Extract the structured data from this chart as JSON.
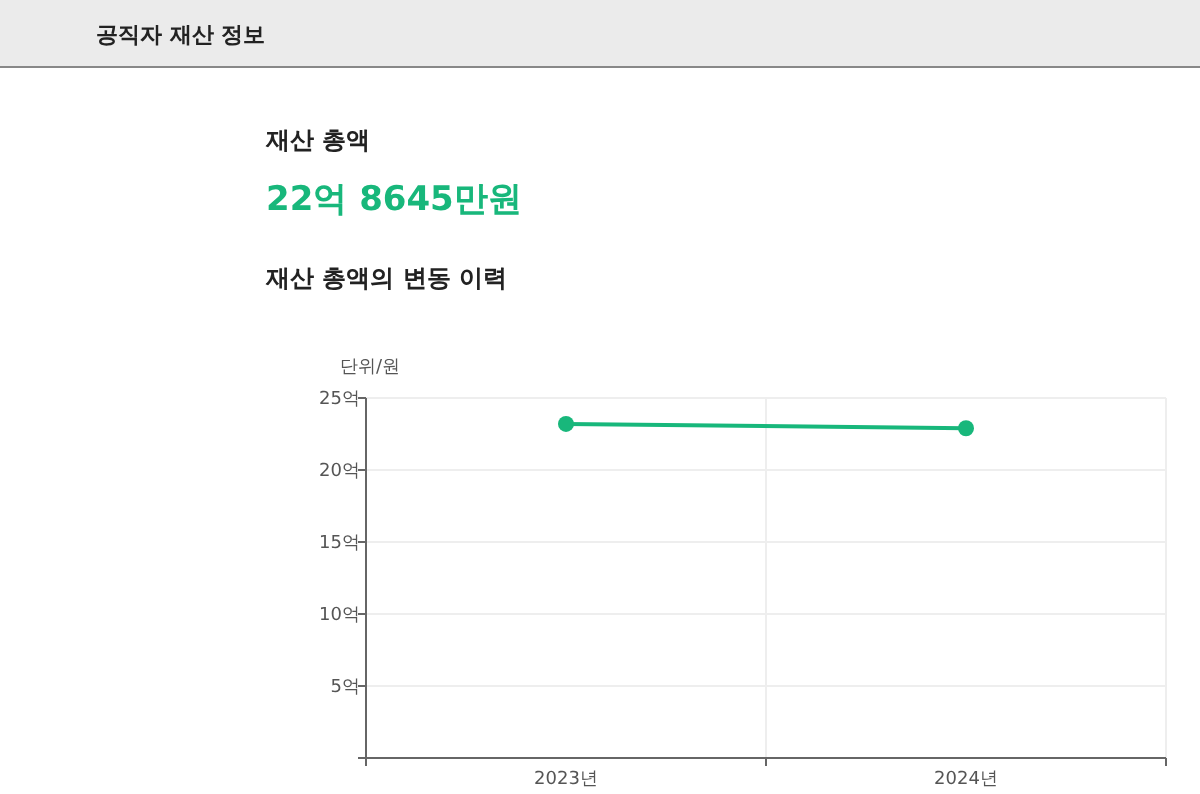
{
  "chart_data": {
    "type": "line",
    "title": "재산 총액의 변동 이력",
    "ylabel": "단위/원",
    "annotations": [
      "공직자 재산 정보",
      "재산 총액",
      "22억 8645만원"
    ],
    "categories": [
      "2023년",
      "2024년"
    ],
    "series": [
      {
        "color": "#18b77b",
        "values": [
          23.2,
          22.9
        ]
      }
    ],
    "ylim": [
      0,
      25
    ],
    "yticks": [
      {
        "value": 0,
        "label": null
      },
      {
        "value": 5,
        "label": "5억"
      },
      {
        "value": 10,
        "label": "10억"
      },
      {
        "value": 15,
        "label": "15억"
      },
      {
        "value": 20,
        "label": "20억"
      },
      {
        "value": 25,
        "label": "25억"
      }
    ],
    "grid": true,
    "marker": "circle",
    "line_style": "solid"
  }
}
